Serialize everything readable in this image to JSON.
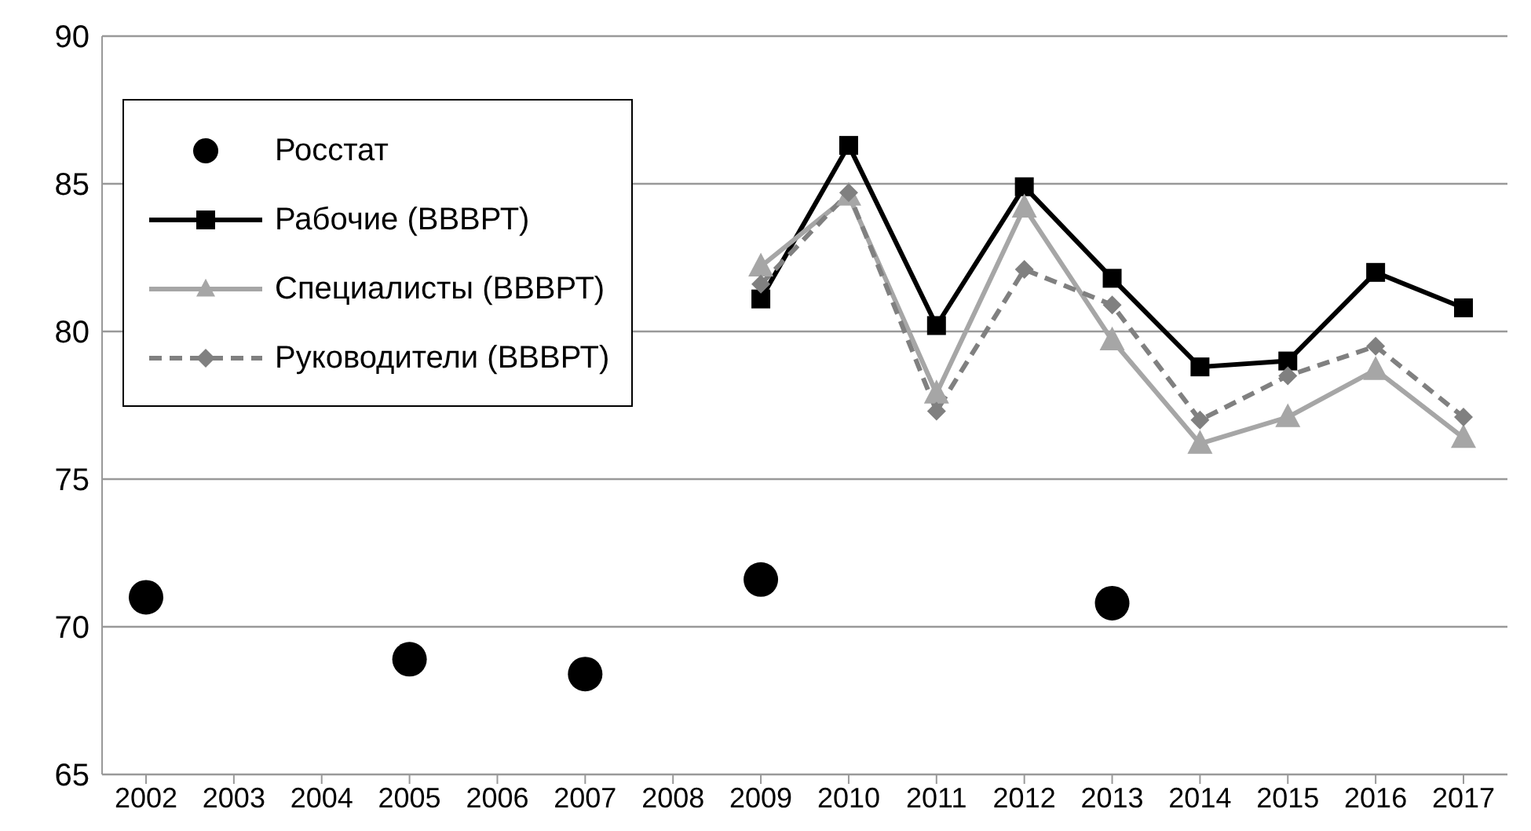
{
  "chart_data": {
    "type": "line",
    "categories": [
      "2002",
      "2003",
      "2004",
      "2005",
      "2006",
      "2007",
      "2008",
      "2009",
      "2010",
      "2011",
      "2012",
      "2013",
      "2014",
      "2015",
      "2016",
      "2017"
    ],
    "series": [
      {
        "name": "Росстат",
        "type": "scatter",
        "marker": "circle",
        "color": "#000000",
        "values": [
          71.0,
          null,
          null,
          68.9,
          null,
          68.4,
          null,
          71.6,
          null,
          null,
          null,
          70.8,
          null,
          null,
          null,
          null
        ]
      },
      {
        "name": "Рабочие (ВВВРТ)",
        "marker": "square",
        "line_style": "solid",
        "color": "#000000",
        "values": [
          null,
          null,
          null,
          null,
          null,
          null,
          null,
          81.1,
          86.3,
          80.2,
          84.9,
          81.8,
          78.8,
          79.0,
          82.0,
          80.8
        ]
      },
      {
        "name": "Специалисты (ВВВРТ)",
        "marker": "triangle",
        "line_style": "solid",
        "color": "#a6a6a6",
        "values": [
          null,
          null,
          null,
          null,
          null,
          null,
          null,
          82.2,
          84.6,
          77.9,
          84.2,
          79.7,
          76.2,
          77.1,
          78.7,
          76.4
        ]
      },
      {
        "name": "Руководители (ВВВРТ)",
        "marker": "diamond",
        "line_style": "dashed",
        "color": "#808080",
        "values": [
          null,
          null,
          null,
          null,
          null,
          null,
          null,
          81.6,
          84.7,
          77.3,
          82.1,
          80.9,
          77.0,
          78.5,
          79.5,
          77.1
        ]
      }
    ],
    "ylim": [
      65,
      90
    ],
    "yticks": [
      65,
      70,
      75,
      80,
      85,
      90
    ],
    "grid": "y",
    "legend": "top left"
  }
}
